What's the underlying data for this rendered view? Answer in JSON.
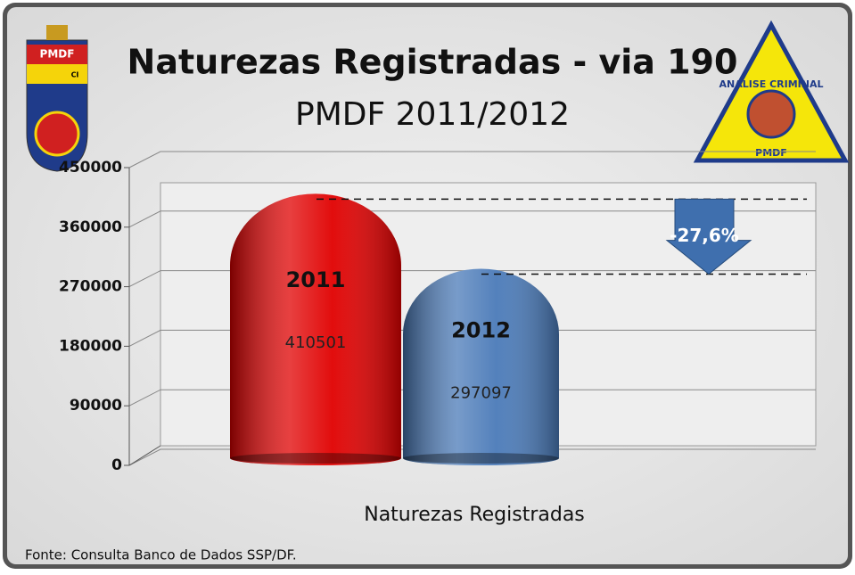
{
  "chart_data": {
    "type": "bar",
    "title": "Naturezas Registradas - via 190",
    "subtitle": "PMDF 2011/2012",
    "categories": [
      "Naturezas Registradas"
    ],
    "series": [
      {
        "name": "2011",
        "color": "#e00000",
        "values": [
          410501
        ]
      },
      {
        "name": "2012",
        "color": "#4a7ab8",
        "values": [
          297097
        ]
      }
    ],
    "ylim": [
      0,
      450000
    ],
    "yticks": [
      0,
      90000,
      180000,
      270000,
      360000,
      450000
    ],
    "grid": true,
    "annotation": "-27,6%",
    "source": "Fonte: Consulta Banco de Dados SSP/DF.",
    "logos": {
      "left": [
        "PMDF",
        "CI"
      ],
      "right": [
        "ANALISE CRIMINAL",
        "PMDF"
      ]
    }
  }
}
